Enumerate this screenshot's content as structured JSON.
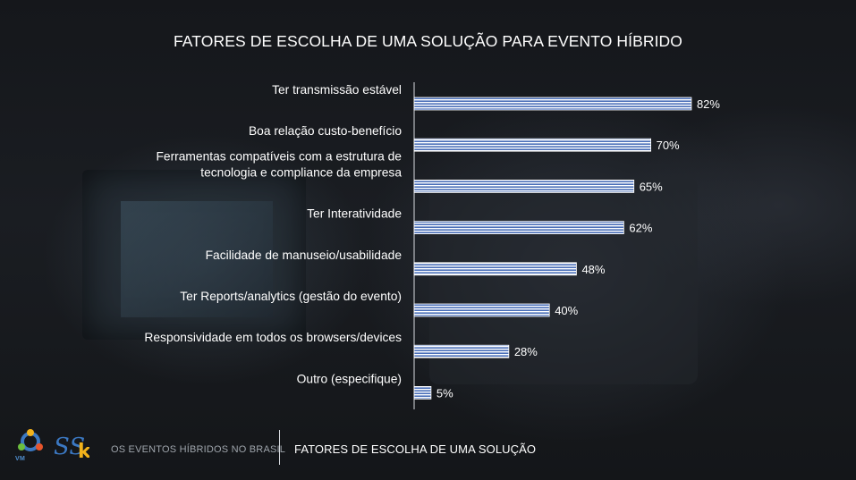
{
  "slide": {
    "title": "FATORES DE ESCOLHA DE UMA SOLUÇÃO PARA EVENTO HÍBRIDO",
    "footer_left": "OS EVENTOS HÍBRIDOS NO BRASIL",
    "footer_right": "FATORES DE ESCOLHA DE UMA SOLUÇÃO",
    "logo_vm_text": "VM",
    "logo_ssk_text": "SSk"
  },
  "colors": {
    "bar_fill": "#4a6fb8",
    "bar_stripe": "#ffffff",
    "text": "#ffffff",
    "footer_muted": "#9ea4ab"
  },
  "chart_data": {
    "type": "bar",
    "orientation": "horizontal",
    "title": "FATORES DE ESCOLHA DE UMA SOLUÇÃO PARA EVENTO HÍBRIDO",
    "categories": [
      [
        "Ter transmissão estável"
      ],
      [
        "Boa relação custo-benefício"
      ],
      [
        "Ferramentas compatíveis com a estrutura de",
        "tecnologia  e compliance da empresa"
      ],
      [
        "Ter Interatividade"
      ],
      [
        "Facilidade de manuseio/usabilidade"
      ],
      [
        "Ter Reports/analytics (gestão do evento)"
      ],
      [
        "Responsividade em todos os browsers/devices"
      ],
      [
        "Outro (especifique)"
      ]
    ],
    "values": [
      82,
      70,
      65,
      62,
      48,
      40,
      28,
      5
    ],
    "value_labels": [
      "82%",
      "70%",
      "65%",
      "62%",
      "48%",
      "40%",
      "28%",
      "5%"
    ],
    "xlim": [
      0,
      100
    ],
    "unit": "%",
    "grid": false,
    "legend": false
  }
}
